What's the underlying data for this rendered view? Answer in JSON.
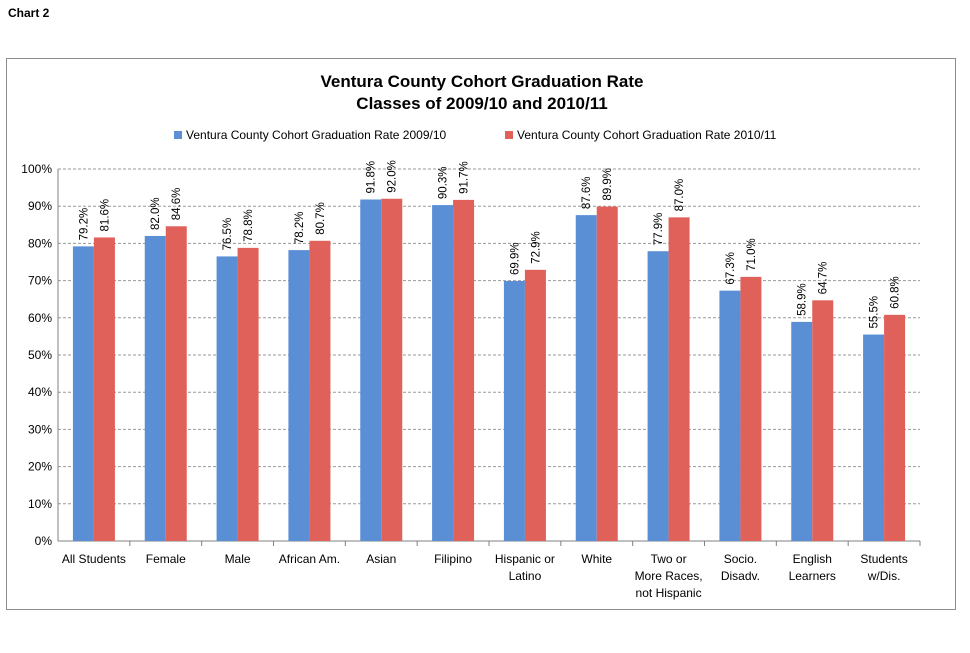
{
  "page": {
    "label": "Chart 2"
  },
  "chart_data": {
    "type": "bar",
    "title": [
      "Ventura County Cohort Graduation Rate",
      "Classes of 2009/10 and 2010/11"
    ],
    "categories": [
      [
        "All Students"
      ],
      [
        "Female"
      ],
      [
        "Male"
      ],
      [
        "African Am."
      ],
      [
        "Asian"
      ],
      [
        "Filipino"
      ],
      [
        "Hispanic or",
        "Latino"
      ],
      [
        "White"
      ],
      [
        "Two or",
        "More Races,",
        "not Hispanic"
      ],
      [
        "Socio.",
        "Disadv."
      ],
      [
        "English",
        "Learners"
      ],
      [
        "Students",
        "w/Dis."
      ]
    ],
    "series": [
      {
        "name": "Ventura County Cohort Graduation Rate 2009/10",
        "color": "#5a8fd6",
        "values": [
          79.2,
          82.0,
          76.5,
          78.2,
          91.8,
          90.3,
          69.9,
          87.6,
          77.9,
          67.3,
          58.9,
          55.5
        ],
        "labels": [
          "79.2%",
          "82.0%",
          "76.5%",
          "78.2%",
          "91.8%",
          "90.3%",
          "69.9%",
          "87.6%",
          "77.9%",
          "67.3%",
          "58.9%",
          "55.5%"
        ]
      },
      {
        "name": "Ventura County Cohort Graduation Rate 2010/11",
        "color": "#e0605a",
        "values": [
          81.6,
          84.6,
          78.8,
          80.7,
          92.0,
          91.7,
          72.9,
          89.9,
          87.0,
          71.0,
          64.7,
          60.8
        ],
        "labels": [
          "81.6%",
          "84.6%",
          "78.8%",
          "80.7%",
          "92.0%",
          "91.7%",
          "72.9%",
          "89.9%",
          "87.0%",
          "71.0%",
          "64.7%",
          "60.8%"
        ]
      }
    ],
    "ylim": [
      0,
      100
    ],
    "yticks": [
      "0%",
      "10%",
      "20%",
      "30%",
      "40%",
      "50%",
      "60%",
      "70%",
      "80%",
      "90%",
      "100%"
    ],
    "grid": true,
    "legend_position": "top"
  }
}
